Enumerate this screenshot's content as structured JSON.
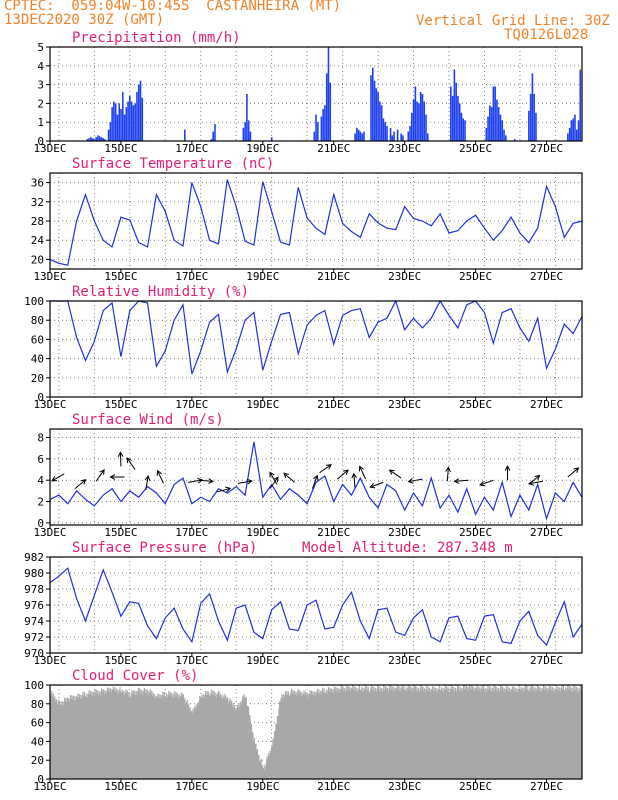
{
  "header": {
    "line1": "CPTEC:  059:04W-10:45S  CASTANHEIRA (MT)",
    "line2": "13DEC2020 30Z (GMT)",
    "grid_note": "Vertical Grid Line: 30Z",
    "code": "TQ0126L028"
  },
  "colors": {
    "header": "#f08228",
    "title": "#e0207a",
    "line": "#2030e0",
    "bar": "#2040f0",
    "cloud": "#a8a8a8",
    "grid": "#808080"
  },
  "chart_data": [
    {
      "id": "precip",
      "type": "bar",
      "title": "Precipitation (mm/h)",
      "ylim": [
        0,
        5
      ],
      "yticks": [
        0,
        1,
        2,
        3,
        4,
        5
      ],
      "xlim": [
        13.0,
        28.0
      ],
      "xticks": [
        "13DEC",
        "15DEC",
        "17DEC",
        "19DEC",
        "21DEC",
        "23DEC",
        "25DEC",
        "27DEC"
      ],
      "xtick_days": [
        13,
        15,
        17,
        19,
        21,
        23,
        25,
        27
      ],
      "grid": true,
      "values": [
        [
          14.05,
          0.1
        ],
        [
          14.1,
          0.15
        ],
        [
          14.15,
          0.2
        ],
        [
          14.2,
          0.15
        ],
        [
          14.25,
          0.1
        ],
        [
          14.3,
          0.2
        ],
        [
          14.35,
          0.3
        ],
        [
          14.4,
          0.25
        ],
        [
          14.45,
          0.2
        ],
        [
          14.5,
          0.15
        ],
        [
          14.55,
          0.1
        ],
        [
          14.65,
          0.6
        ],
        [
          14.7,
          1.0
        ],
        [
          14.75,
          1.8
        ],
        [
          14.8,
          2.1
        ],
        [
          14.85,
          2.0
        ],
        [
          14.9,
          1.4
        ],
        [
          14.95,
          2.0
        ],
        [
          15.0,
          1.7
        ],
        [
          15.05,
          2.6
        ],
        [
          15.1,
          1.4
        ],
        [
          15.15,
          1.8
        ],
        [
          15.2,
          2.1
        ],
        [
          15.25,
          2.4
        ],
        [
          15.3,
          2.1
        ],
        [
          15.35,
          1.9
        ],
        [
          15.4,
          2.0
        ],
        [
          15.45,
          2.6
        ],
        [
          15.5,
          3.0
        ],
        [
          15.55,
          3.2
        ],
        [
          15.6,
          2.3
        ],
        [
          16.8,
          0.6
        ],
        [
          17.55,
          0.1
        ],
        [
          17.6,
          0.5
        ],
        [
          17.65,
          0.9
        ],
        [
          18.45,
          0.7
        ],
        [
          18.5,
          1.0
        ],
        [
          18.55,
          2.5
        ],
        [
          18.6,
          1.1
        ],
        [
          18.65,
          0.5
        ],
        [
          19.25,
          0.2
        ],
        [
          20.45,
          0.5
        ],
        [
          20.5,
          1.4
        ],
        [
          20.55,
          1.0
        ],
        [
          20.65,
          1.3
        ],
        [
          20.7,
          1.7
        ],
        [
          20.75,
          1.9
        ],
        [
          20.8,
          3.6
        ],
        [
          20.85,
          5.0
        ],
        [
          20.9,
          3.1
        ],
        [
          21.6,
          0.4
        ],
        [
          21.65,
          0.7
        ],
        [
          21.7,
          0.6
        ],
        [
          21.75,
          0.5
        ],
        [
          21.8,
          0.4
        ],
        [
          21.85,
          0.5
        ],
        [
          22.05,
          3.5
        ],
        [
          22.1,
          3.9
        ],
        [
          22.15,
          3.2
        ],
        [
          22.2,
          2.8
        ],
        [
          22.25,
          2.6
        ],
        [
          22.3,
          2.1
        ],
        [
          22.35,
          1.9
        ],
        [
          22.4,
          1.2
        ],
        [
          22.45,
          1.0
        ],
        [
          22.5,
          0.8
        ],
        [
          22.6,
          0.7
        ],
        [
          22.65,
          0.3
        ],
        [
          22.7,
          0.5
        ],
        [
          22.8,
          0.6
        ],
        [
          22.9,
          0.4
        ],
        [
          22.95,
          0.3
        ],
        [
          23.1,
          0.5
        ],
        [
          23.15,
          0.8
        ],
        [
          23.2,
          1.5
        ],
        [
          23.25,
          2.2
        ],
        [
          23.3,
          2.9
        ],
        [
          23.35,
          2.1
        ],
        [
          23.4,
          2.0
        ],
        [
          23.45,
          2.6
        ],
        [
          23.5,
          2.5
        ],
        [
          23.55,
          2.1
        ],
        [
          23.6,
          1.4
        ],
        [
          23.65,
          0.4
        ],
        [
          24.3,
          2.9
        ],
        [
          24.35,
          2.4
        ],
        [
          24.4,
          3.8
        ],
        [
          24.45,
          3.1
        ],
        [
          24.5,
          2.4
        ],
        [
          24.55,
          2.0
        ],
        [
          24.6,
          1.5
        ],
        [
          24.65,
          1.2
        ],
        [
          24.7,
          1.1
        ],
        [
          25.3,
          0.7
        ],
        [
          25.35,
          1.3
        ],
        [
          25.4,
          1.9
        ],
        [
          25.45,
          1.8
        ],
        [
          25.5,
          2.9
        ],
        [
          25.55,
          2.9
        ],
        [
          25.6,
          2.2
        ],
        [
          25.65,
          1.8
        ],
        [
          25.7,
          1.4
        ],
        [
          25.75,
          1.1
        ],
        [
          25.8,
          0.6
        ],
        [
          25.85,
          0.3
        ],
        [
          26.1,
          0.1
        ],
        [
          26.5,
          1.6
        ],
        [
          26.55,
          2.5
        ],
        [
          26.6,
          3.6
        ],
        [
          26.65,
          2.5
        ],
        [
          26.7,
          1.5
        ],
        [
          27.6,
          0.4
        ],
        [
          27.65,
          0.7
        ],
        [
          27.7,
          1.1
        ],
        [
          27.75,
          1.2
        ],
        [
          27.8,
          1.4
        ],
        [
          27.85,
          0.6
        ],
        [
          27.9,
          1.1
        ],
        [
          27.95,
          3.8
        ]
      ]
    },
    {
      "id": "temp",
      "type": "line",
      "title": "Surface Temperature (nC)",
      "ylim": [
        18,
        38
      ],
      "yticks": [
        20,
        24,
        28,
        32,
        36
      ],
      "xlim": [
        13.0,
        28.0
      ],
      "grid": true,
      "x": [
        13.0,
        13.25,
        13.5,
        13.75,
        14.0,
        14.25,
        14.5,
        14.75,
        15.0,
        15.25,
        15.5,
        15.75,
        16.0,
        16.25,
        16.5,
        16.75,
        17.0,
        17.25,
        17.5,
        17.75,
        18.0,
        18.25,
        18.5,
        18.75,
        19.0,
        19.25,
        19.5,
        19.75,
        20.0,
        20.25,
        20.5,
        20.75,
        21.0,
        21.25,
        21.5,
        21.75,
        22.0,
        22.25,
        22.5,
        22.75,
        23.0,
        23.25,
        23.5,
        23.75,
        24.0,
        24.25,
        24.5,
        24.75,
        25.0,
        25.25,
        25.5,
        25.75,
        26.0,
        26.25,
        26.5,
        26.75,
        27.0,
        27.25,
        27.5,
        27.75,
        28.0
      ],
      "y": [
        20.0,
        19.2,
        18.8,
        28.0,
        33.5,
        28.0,
        24.0,
        22.6,
        28.8,
        28.2,
        23.5,
        22.6,
        33.5,
        30.0,
        24.0,
        22.8,
        36.0,
        31.0,
        24.0,
        23.2,
        36.6,
        31.0,
        23.8,
        23.0,
        36.2,
        30.0,
        23.6,
        23.0,
        35.0,
        28.6,
        26.5,
        25.2,
        33.5,
        27.5,
        25.8,
        24.6,
        29.5,
        27.6,
        26.5,
        26.2,
        31.0,
        28.5,
        28.0,
        27.0,
        29.5,
        25.5,
        26.0,
        28.0,
        29.2,
        26.5,
        24.0,
        26.0,
        28.8,
        25.5,
        23.5,
        26.5,
        35.2,
        31.0,
        24.6,
        27.5,
        28.0
      ]
    },
    {
      "id": "rh",
      "type": "line",
      "title": "Relative Humidity (%)",
      "ylim": [
        0,
        100
      ],
      "yticks": [
        0,
        20,
        40,
        60,
        80,
        100
      ],
      "xlim": [
        13.0,
        28.0
      ],
      "grid": true,
      "x": [
        13.0,
        13.25,
        13.5,
        13.75,
        14.0,
        14.25,
        14.5,
        14.75,
        15.0,
        15.25,
        15.5,
        15.75,
        16.0,
        16.25,
        16.5,
        16.75,
        17.0,
        17.25,
        17.5,
        17.75,
        18.0,
        18.25,
        18.5,
        18.75,
        19.0,
        19.25,
        19.5,
        19.75,
        20.0,
        20.25,
        20.5,
        20.75,
        21.0,
        21.25,
        21.5,
        21.75,
        22.0,
        22.25,
        22.5,
        22.75,
        23.0,
        23.25,
        23.5,
        23.75,
        24.0,
        24.25,
        24.5,
        24.75,
        25.0,
        25.25,
        25.5,
        25.75,
        26.0,
        26.25,
        26.5,
        26.75,
        27.0,
        27.25,
        27.5,
        27.75,
        28.0
      ],
      "y": [
        100,
        100,
        100,
        62,
        38,
        58,
        90,
        98,
        42,
        90,
        100,
        98,
        32,
        48,
        80,
        96,
        24,
        48,
        78,
        86,
        26,
        50,
        80,
        88,
        28,
        58,
        86,
        88,
        45,
        75,
        85,
        90,
        55,
        85,
        90,
        92,
        62,
        78,
        82,
        100,
        70,
        82,
        72,
        82,
        100,
        85,
        72,
        96,
        100,
        88,
        56,
        88,
        92,
        72,
        58,
        82,
        30,
        50,
        76,
        66,
        84
      ]
    },
    {
      "id": "wind",
      "type": "line",
      "title": "Surface Wind (m/s)",
      "ylim": [
        -0.2,
        8.8
      ],
      "yticks": [
        0,
        2,
        4,
        6,
        8
      ],
      "xlim": [
        13.0,
        28.0
      ],
      "grid": true,
      "x": [
        13.0,
        13.25,
        13.5,
        13.75,
        14.0,
        14.25,
        14.5,
        14.75,
        15.0,
        15.25,
        15.5,
        15.75,
        16.0,
        16.25,
        16.5,
        16.75,
        17.0,
        17.25,
        17.5,
        17.75,
        18.0,
        18.25,
        18.5,
        18.75,
        19.0,
        19.25,
        19.5,
        19.75,
        20.0,
        20.25,
        20.5,
        20.75,
        21.0,
        21.25,
        21.5,
        21.75,
        22.0,
        22.25,
        22.5,
        22.75,
        23.0,
        23.25,
        23.5,
        23.75,
        24.0,
        24.25,
        24.5,
        24.75,
        25.0,
        25.25,
        25.5,
        25.75,
        26.0,
        26.25,
        26.5,
        26.75,
        27.0,
        27.25,
        27.5,
        27.75,
        28.0
      ],
      "y": [
        2.2,
        2.6,
        1.8,
        3.0,
        2.2,
        1.6,
        2.6,
        3.2,
        2.0,
        3.0,
        2.4,
        3.4,
        2.8,
        1.8,
        3.6,
        4.2,
        1.8,
        2.4,
        2.0,
        3.2,
        2.8,
        3.4,
        2.6,
        7.6,
        2.4,
        3.6,
        2.2,
        3.2,
        2.6,
        1.8,
        3.8,
        4.4,
        2.0,
        3.6,
        2.6,
        4.2,
        2.4,
        1.4,
        3.6,
        3.0,
        1.2,
        2.8,
        1.6,
        4.2,
        1.4,
        2.6,
        1.0,
        3.2,
        0.8,
        2.4,
        1.2,
        3.8,
        0.6,
        2.6,
        1.2,
        3.6,
        0.4,
        2.8,
        2.0,
        3.8,
        2.4
      ],
      "vectors": [
        [
          13.4,
          4.6,
          150
        ],
        [
          13.7,
          3.2,
          -40
        ],
        [
          14.3,
          3.9,
          -55
        ],
        [
          15.1,
          4.3,
          180
        ],
        [
          15.0,
          5.3,
          -92
        ],
        [
          15.4,
          5.0,
          -125
        ],
        [
          15.7,
          3.1,
          -80
        ],
        [
          16.2,
          3.7,
          -115
        ],
        [
          16.9,
          3.8,
          -10
        ],
        [
          17.2,
          4.0,
          5
        ],
        [
          17.7,
          2.9,
          -15
        ],
        [
          18.3,
          3.7,
          -10
        ],
        [
          19.2,
          3.2,
          -55
        ],
        [
          19.4,
          3.6,
          -120
        ],
        [
          19.9,
          3.8,
          -140
        ],
        [
          20.4,
          3.2,
          -70
        ],
        [
          20.6,
          4.7,
          -35
        ],
        [
          21.1,
          4.1,
          -40
        ],
        [
          21.6,
          3.3,
          -95
        ],
        [
          21.9,
          4.1,
          -115
        ],
        [
          22.4,
          3.8,
          160
        ],
        [
          22.9,
          4.2,
          -145
        ],
        [
          23.5,
          4.1,
          170
        ],
        [
          24.2,
          3.9,
          -85
        ],
        [
          24.8,
          4.0,
          175
        ],
        [
          25.5,
          4.0,
          160
        ],
        [
          25.9,
          4.0,
          -90
        ],
        [
          26.5,
          3.6,
          -40
        ],
        [
          26.9,
          3.9,
          170
        ],
        [
          27.6,
          4.3,
          -40
        ]
      ]
    },
    {
      "id": "pressure",
      "type": "line",
      "title": "Surface Pressure (hPa)",
      "note": "Model Altitude: 287.348 m",
      "ylim": [
        970,
        982
      ],
      "yticks": [
        970,
        972,
        974,
        976,
        978,
        980,
        982
      ],
      "xlim": [
        13.0,
        28.0
      ],
      "grid": true,
      "x": [
        13.0,
        13.25,
        13.5,
        13.75,
        14.0,
        14.25,
        14.5,
        14.75,
        15.0,
        15.25,
        15.5,
        15.75,
        16.0,
        16.25,
        16.5,
        16.75,
        17.0,
        17.25,
        17.5,
        17.75,
        18.0,
        18.25,
        18.5,
        18.75,
        19.0,
        19.25,
        19.5,
        19.75,
        20.0,
        20.25,
        20.5,
        20.75,
        21.0,
        21.25,
        21.5,
        21.75,
        22.0,
        22.25,
        22.5,
        22.75,
        23.0,
        23.25,
        23.5,
        23.75,
        24.0,
        24.25,
        24.5,
        24.75,
        25.0,
        25.25,
        25.5,
        25.75,
        26.0,
        26.25,
        26.5,
        26.75,
        27.0,
        27.25,
        27.5,
        27.75,
        28.0
      ],
      "y": [
        978.8,
        979.6,
        980.6,
        976.8,
        974.0,
        977.2,
        980.4,
        977.6,
        974.6,
        976.4,
        976.2,
        973.4,
        971.8,
        974.4,
        975.6,
        973.0,
        971.4,
        976.2,
        977.4,
        974.0,
        971.6,
        975.6,
        976.0,
        972.6,
        971.8,
        975.4,
        976.4,
        973.0,
        972.8,
        976.0,
        976.6,
        973.0,
        973.2,
        976.0,
        977.6,
        974.0,
        971.8,
        975.4,
        975.6,
        972.6,
        972.2,
        974.4,
        975.4,
        972.0,
        971.4,
        974.4,
        974.6,
        971.8,
        971.6,
        974.6,
        974.8,
        971.4,
        971.2,
        974.0,
        975.2,
        972.2,
        971.0,
        973.8,
        976.4,
        972.0,
        973.6
      ]
    },
    {
      "id": "cloud",
      "type": "area",
      "title": "Cloud Cover (%)",
      "ylim": [
        0,
        100
      ],
      "yticks": [
        0,
        20,
        40,
        60,
        80,
        100
      ],
      "xlim": [
        13.0,
        28.0
      ],
      "grid": true,
      "x": [
        13.0,
        13.25,
        13.5,
        13.75,
        14.0,
        14.25,
        14.5,
        14.75,
        15.0,
        15.25,
        15.5,
        15.75,
        16.0,
        16.25,
        16.5,
        16.75,
        17.0,
        17.25,
        17.5,
        17.75,
        18.0,
        18.25,
        18.5,
        18.75,
        19.0,
        19.25,
        19.5,
        19.75,
        20.0,
        20.25,
        20.5,
        20.75,
        21.0,
        21.25,
        21.5,
        21.75,
        22.0,
        22.25,
        22.5,
        22.75,
        23.0,
        23.25,
        23.5,
        23.75,
        24.0,
        24.25,
        24.5,
        24.75,
        25.0,
        25.25,
        25.5,
        25.75,
        26.0,
        26.25,
        26.5,
        26.75,
        27.0,
        27.25,
        27.5,
        27.75,
        28.0
      ],
      "y": [
        92,
        80,
        85,
        88,
        90,
        92,
        93,
        95,
        94,
        90,
        94,
        93,
        88,
        90,
        90,
        88,
        70,
        88,
        92,
        90,
        85,
        75,
        90,
        40,
        10,
        35,
        88,
        92,
        92,
        90,
        93,
        94,
        95,
        96,
        96,
        96,
        96,
        96,
        96,
        97,
        97,
        96,
        96,
        95,
        96,
        96,
        96,
        97,
        97,
        96,
        96,
        96,
        95,
        96,
        97,
        96,
        96,
        96,
        97,
        96,
        96
      ]
    }
  ]
}
